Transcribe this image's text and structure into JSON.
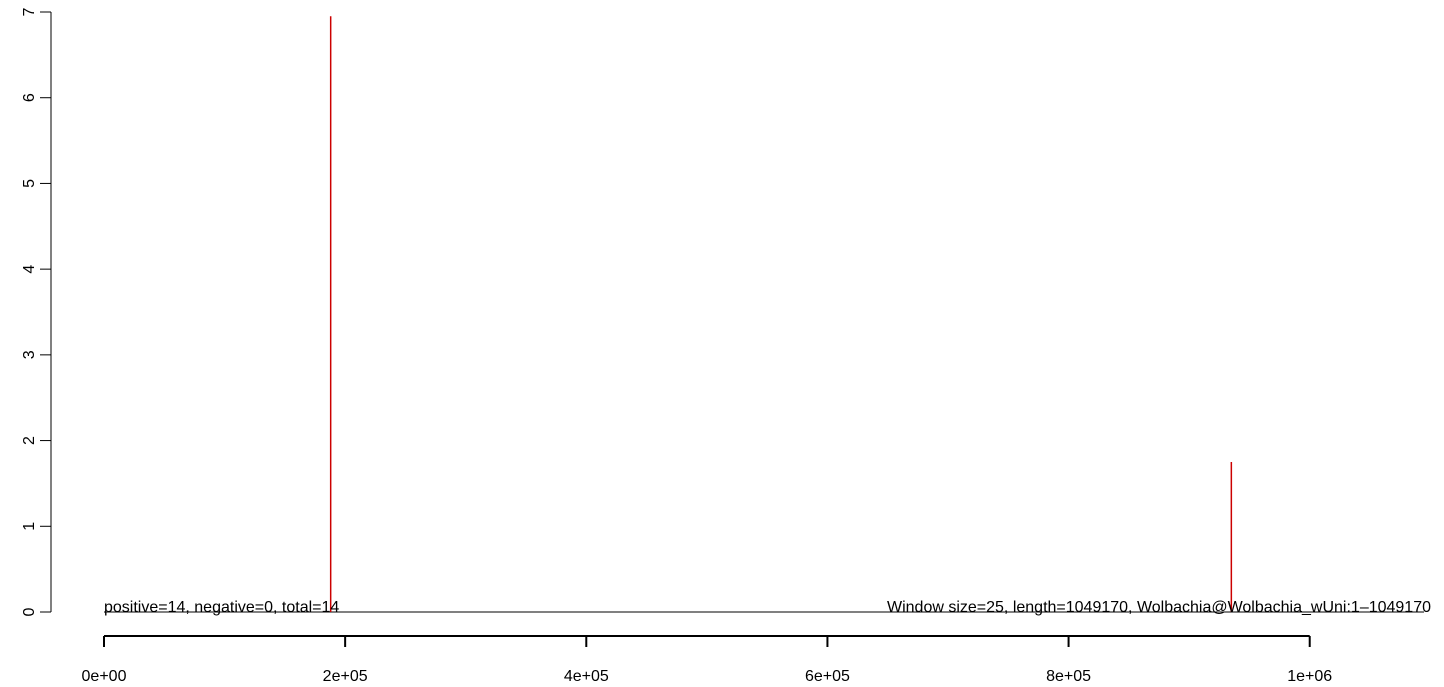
{
  "chart_data": {
    "type": "bar",
    "title": "",
    "xlabel": "",
    "ylabel": "",
    "xlim": [
      0,
      1049170
    ],
    "ylim": [
      0,
      7
    ],
    "x_ticks": [
      0,
      200000,
      400000,
      600000,
      800000,
      1000000
    ],
    "x_tick_labels": [
      "0e+00",
      "2e+05",
      "4e+05",
      "6e+05",
      "8e+05",
      "1e+06"
    ],
    "y_ticks": [
      0,
      1,
      2,
      3,
      4,
      5,
      6,
      7
    ],
    "y_tick_labels": [
      "0",
      "1",
      "2",
      "3",
      "4",
      "5",
      "6",
      "7"
    ],
    "series": [
      {
        "color": "#cc0000",
        "points": [
          {
            "x": 188000,
            "y": 6.95
          },
          {
            "x": 935000,
            "y": 1.75
          }
        ]
      }
    ],
    "baseline": {
      "y": 0,
      "color": "#000000"
    },
    "annotations": {
      "left": "positive=14, negative=0, total=14",
      "right": "Window size=25, length=1049170, Wolbachia@Wolbachia_wUni:1–1049170"
    },
    "grid": false,
    "legend": "none"
  }
}
